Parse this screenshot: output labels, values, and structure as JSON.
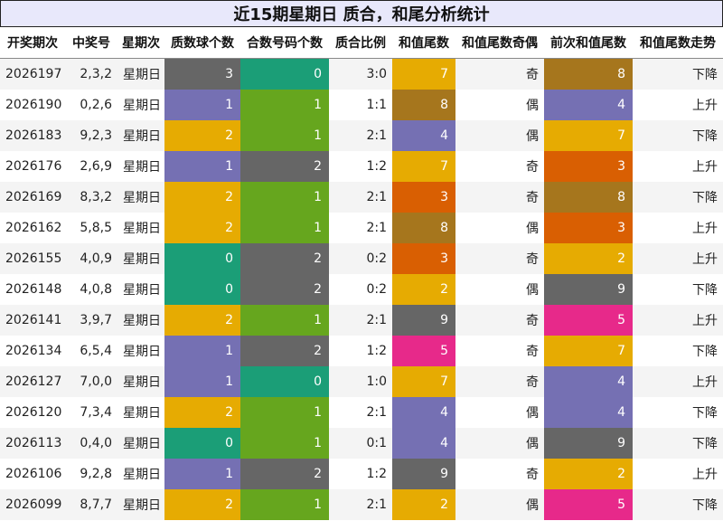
{
  "title": "近15期星期日 质合，和尾分析统计",
  "headers": [
    "开奖期次",
    "中奖号",
    "星期次",
    "质数球个数",
    "合数号码个数",
    "质合比例",
    "和值尾数",
    "和值尾数奇偶",
    "前次和值尾数",
    "和值尾数走势"
  ],
  "colors": {
    "0": "#1b9e77",
    "1": "#66a61e",
    "2": "#e6ab02",
    "3": "#d95f02",
    "4": "#7570b3",
    "5": "#e7298a",
    "7": "#e6ab02",
    "8": "#a6761d",
    "9": "#666666"
  },
  "prime_colors": {
    "0": "#1b9e77",
    "1": "#7570b3",
    "2": "#e6ab02",
    "3": "#666666"
  },
  "composite_colors": {
    "0": "#1b9e77",
    "1": "#66a61e",
    "2": "#666666"
  },
  "rows": [
    {
      "period": "2026197",
      "numbers": "2,3,2",
      "weekday": "星期日",
      "primes": 3,
      "composites": 0,
      "ratio": "3:0",
      "tail": 7,
      "parity": "奇",
      "prev_tail": 8,
      "trend": "下降"
    },
    {
      "period": "2026190",
      "numbers": "0,2,6",
      "weekday": "星期日",
      "primes": 1,
      "composites": 1,
      "ratio": "1:1",
      "tail": 8,
      "parity": "偶",
      "prev_tail": 4,
      "trend": "上升"
    },
    {
      "period": "2026183",
      "numbers": "9,2,3",
      "weekday": "星期日",
      "primes": 2,
      "composites": 1,
      "ratio": "2:1",
      "tail": 4,
      "parity": "偶",
      "prev_tail": 7,
      "trend": "下降"
    },
    {
      "period": "2026176",
      "numbers": "2,6,9",
      "weekday": "星期日",
      "primes": 1,
      "composites": 2,
      "ratio": "1:2",
      "tail": 7,
      "parity": "奇",
      "prev_tail": 3,
      "trend": "上升"
    },
    {
      "period": "2026169",
      "numbers": "8,3,2",
      "weekday": "星期日",
      "primes": 2,
      "composites": 1,
      "ratio": "2:1",
      "tail": 3,
      "parity": "奇",
      "prev_tail": 8,
      "trend": "下降"
    },
    {
      "period": "2026162",
      "numbers": "5,8,5",
      "weekday": "星期日",
      "primes": 2,
      "composites": 1,
      "ratio": "2:1",
      "tail": 8,
      "parity": "偶",
      "prev_tail": 3,
      "trend": "上升"
    },
    {
      "period": "2026155",
      "numbers": "4,0,9",
      "weekday": "星期日",
      "primes": 0,
      "composites": 2,
      "ratio": "0:2",
      "tail": 3,
      "parity": "奇",
      "prev_tail": 2,
      "trend": "上升"
    },
    {
      "period": "2026148",
      "numbers": "4,0,8",
      "weekday": "星期日",
      "primes": 0,
      "composites": 2,
      "ratio": "0:2",
      "tail": 2,
      "parity": "偶",
      "prev_tail": 9,
      "trend": "下降"
    },
    {
      "period": "2026141",
      "numbers": "3,9,7",
      "weekday": "星期日",
      "primes": 2,
      "composites": 1,
      "ratio": "2:1",
      "tail": 9,
      "parity": "奇",
      "prev_tail": 5,
      "trend": "上升"
    },
    {
      "period": "2026134",
      "numbers": "6,5,4",
      "weekday": "星期日",
      "primes": 1,
      "composites": 2,
      "ratio": "1:2",
      "tail": 5,
      "parity": "奇",
      "prev_tail": 7,
      "trend": "下降"
    },
    {
      "period": "2026127",
      "numbers": "7,0,0",
      "weekday": "星期日",
      "primes": 1,
      "composites": 0,
      "ratio": "1:0",
      "tail": 7,
      "parity": "奇",
      "prev_tail": 4,
      "trend": "上升"
    },
    {
      "period": "2026120",
      "numbers": "7,3,4",
      "weekday": "星期日",
      "primes": 2,
      "composites": 1,
      "ratio": "2:1",
      "tail": 4,
      "parity": "偶",
      "prev_tail": 4,
      "trend": "下降"
    },
    {
      "period": "2026113",
      "numbers": "0,4,0",
      "weekday": "星期日",
      "primes": 0,
      "composites": 1,
      "ratio": "0:1",
      "tail": 4,
      "parity": "偶",
      "prev_tail": 9,
      "trend": "下降"
    },
    {
      "period": "2026106",
      "numbers": "9,2,8",
      "weekday": "星期日",
      "primes": 1,
      "composites": 2,
      "ratio": "1:2",
      "tail": 9,
      "parity": "奇",
      "prev_tail": 2,
      "trend": "上升"
    },
    {
      "period": "2026099",
      "numbers": "8,7,7",
      "weekday": "星期日",
      "primes": 2,
      "composites": 1,
      "ratio": "2:1",
      "tail": 2,
      "parity": "偶",
      "prev_tail": 5,
      "trend": "下降"
    }
  ]
}
